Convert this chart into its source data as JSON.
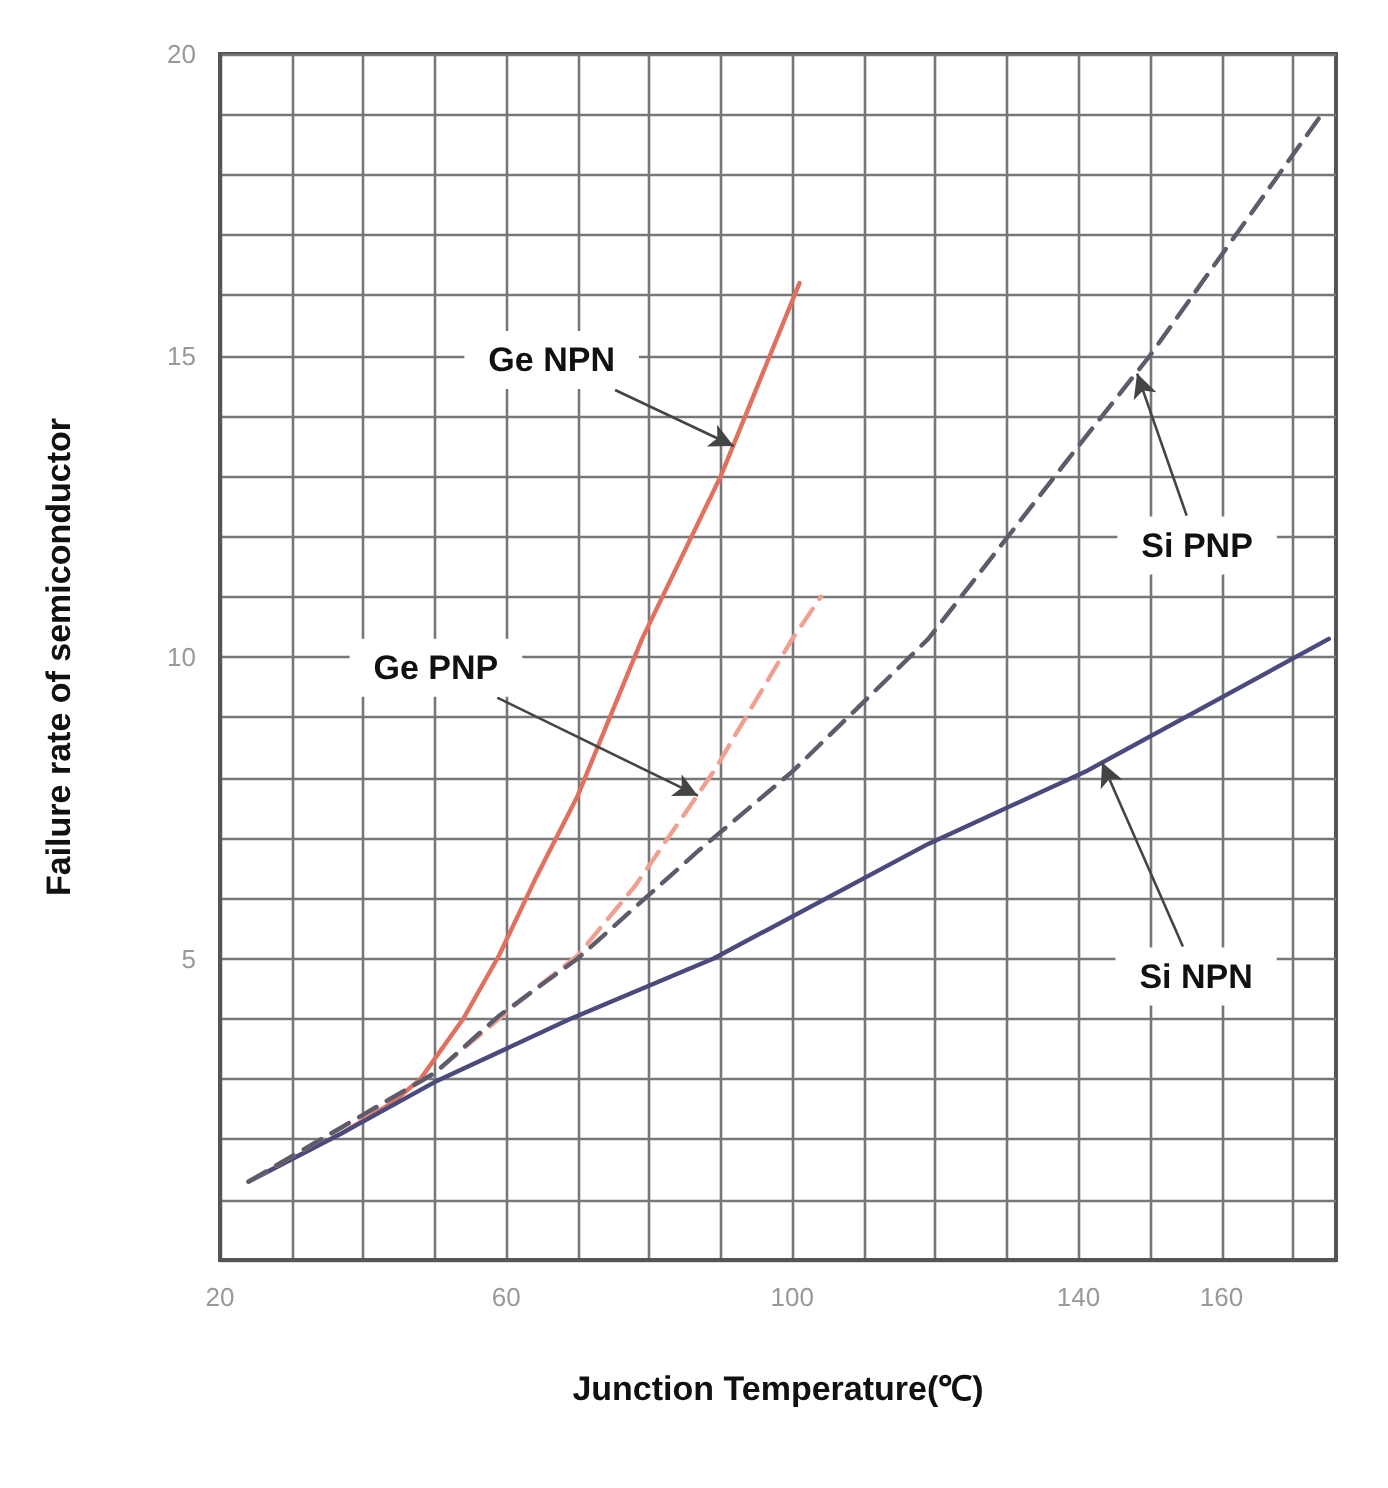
{
  "chart_data": {
    "type": "line",
    "xlabel": "Junction Temperature(℃)",
    "ylabel": "Failure rate of semiconductor",
    "xlim": [
      20,
      176
    ],
    "ylim": [
      0,
      20
    ],
    "xticks": [
      20,
      {
        "value": 30,
        "label": null
      },
      {
        "value": 40,
        "label": null
      },
      {
        "value": 50,
        "label": null
      },
      60,
      {
        "value": 70,
        "label": null
      },
      {
        "value": 80,
        "label": null
      },
      {
        "value": 90,
        "label": null
      },
      100,
      {
        "value": 110,
        "label": null
      },
      {
        "value": 120,
        "label": null
      },
      {
        "value": 130,
        "label": null
      },
      140,
      {
        "value": 150,
        "label": null
      },
      160,
      {
        "value": 170,
        "label": null
      }
    ],
    "yticks": [
      {
        "value": 0,
        "label": null
      },
      {
        "value": 1,
        "label": null
      },
      {
        "value": 2,
        "label": null
      },
      {
        "value": 3,
        "label": null
      },
      {
        "value": 4,
        "label": null
      },
      5,
      {
        "value": 6,
        "label": null
      },
      {
        "value": 7,
        "label": null
      },
      {
        "value": 8,
        "label": null
      },
      {
        "value": 9,
        "label": null
      },
      10,
      {
        "value": 11,
        "label": null
      },
      {
        "value": 12,
        "label": null
      },
      {
        "value": 13,
        "label": null
      },
      {
        "value": 14,
        "label": null
      },
      15,
      {
        "value": 16,
        "label": null
      },
      {
        "value": 17,
        "label": null
      },
      {
        "value": 18,
        "label": null
      },
      {
        "value": 19,
        "label": null
      },
      20
    ],
    "grid": true,
    "marker": "none",
    "series": [
      {
        "color": "#e07060",
        "line_style": "solid",
        "x": [
          24,
          37,
          44,
          48,
          54,
          59,
          64,
          70,
          79,
          90,
          101
        ],
        "values": [
          1.3,
          2.1,
          2.6,
          3.0,
          4.0,
          5.05,
          6.3,
          7.7,
          10.3,
          13,
          16.2
        ]
      },
      {
        "color": "#f0a090",
        "line_style": "dashed",
        "x": [
          24,
          37,
          50,
          62,
          70,
          78,
          89,
          100,
          104
        ],
        "values": [
          1.3,
          2.2,
          3.1,
          4.3,
          5.05,
          6.2,
          8.1,
          10.3,
          11
        ]
      },
      {
        "color": "#5c5c6c",
        "line_style": "dashed",
        "x": [
          24,
          37,
          50,
          59,
          70,
          87,
          100,
          119,
          140,
          150,
          174
        ],
        "values": [
          1.3,
          2.2,
          3.1,
          4.05,
          5.0,
          6.8,
          8.1,
          10.3,
          13.5,
          15,
          19
        ]
      },
      {
        "color": "#4a4a7c",
        "line_style": "solid",
        "x": [
          24,
          37,
          50,
          69,
          89,
          119,
          141,
          175
        ],
        "values": [
          1.3,
          2.1,
          2.95,
          4.0,
          5.0,
          6.9,
          8.1,
          10.3
        ]
      }
    ],
    "annotations": [
      {
        "text": "Ge NPN",
        "x": 91.8,
        "y": 13.5
      },
      {
        "text": "Ge PNP",
        "x": 86.8,
        "y": 7.7
      },
      {
        "text": "Si PNP",
        "x": 148.2,
        "y": 14.7
      },
      {
        "text": "Si NPN",
        "x": 143.3,
        "y": 8.25
      }
    ]
  }
}
